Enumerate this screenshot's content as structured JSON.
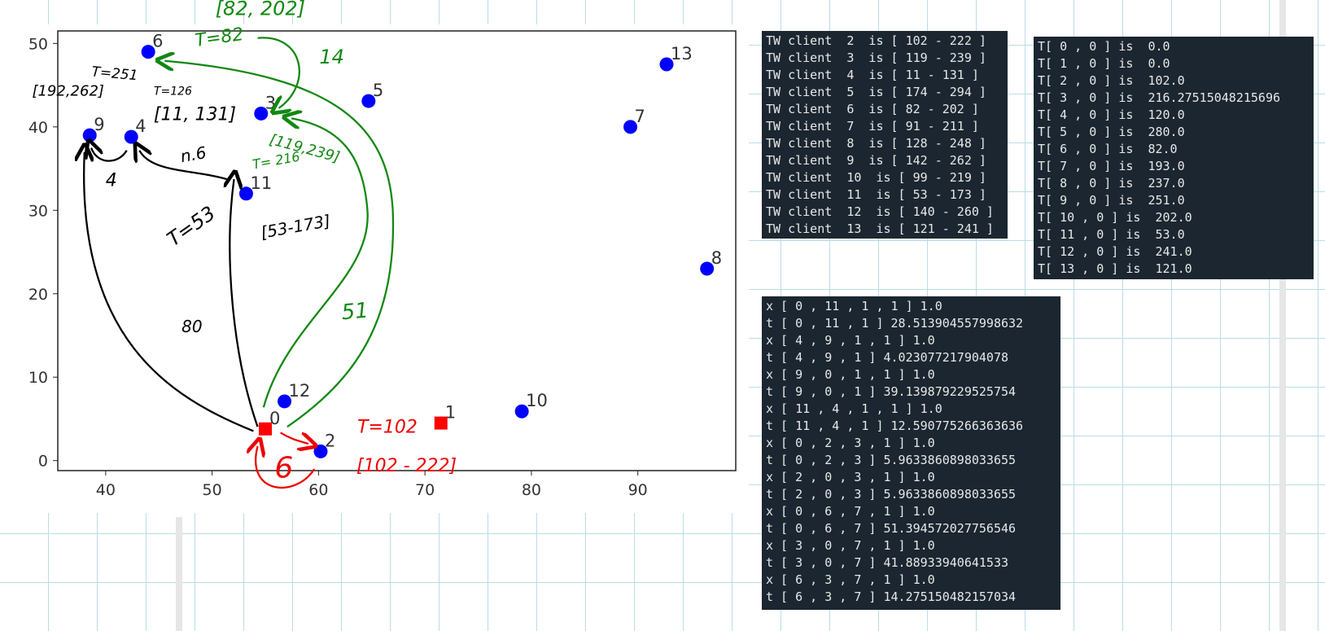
{
  "chart_data": {
    "type": "scatter",
    "xlim": [
      35.5,
      99.2
    ],
    "ylim": [
      -1.2,
      51.5
    ],
    "xticks": [
      40,
      50,
      60,
      70,
      80,
      90
    ],
    "yticks": [
      0,
      10,
      20,
      30,
      40,
      50
    ],
    "series": [
      {
        "color": "#ff0000",
        "marker": "square",
        "labels": [
          "0",
          "1"
        ],
        "x": [
          55,
          71.5
        ],
        "values": [
          3.8,
          4.5
        ]
      },
      {
        "color": "#0000ff",
        "marker": "circle",
        "labels": [
          "2",
          "3",
          "4",
          "5",
          "6",
          "7",
          "8",
          "9",
          "10",
          "11",
          "12",
          "13"
        ],
        "x": [
          60.2,
          54.6,
          42.4,
          64.7,
          44,
          89.3,
          96.5,
          38.5,
          79.1,
          53.2,
          56.8,
          92.7
        ],
        "values": [
          1.1,
          41.6,
          38.8,
          43.1,
          49,
          40,
          23,
          39,
          5.9,
          32,
          7.1,
          47.5
        ]
      }
    ],
    "annotations": [
      {
        "text": "[82, 202]",
        "color": "green"
      },
      {
        "text": "T=82",
        "color": "green"
      },
      {
        "text": "14",
        "color": "green"
      },
      {
        "text": "T=251",
        "color": "black"
      },
      {
        "text": "[192,262]",
        "color": "black"
      },
      {
        "text": "T=126",
        "color": "black"
      },
      {
        "text": "[11, 131]",
        "color": "black"
      },
      {
        "text": "n.6",
        "color": "black"
      },
      {
        "text": "4",
        "color": "black"
      },
      {
        "text": "[119,239]",
        "color": "green"
      },
      {
        "text": "T= 216",
        "color": "green"
      },
      {
        "text": "T=53",
        "color": "black"
      },
      {
        "text": "[53-173]",
        "color": "black"
      },
      {
        "text": "80",
        "color": "black"
      },
      {
        "text": "51",
        "color": "green"
      },
      {
        "text": "T=102",
        "color": "red"
      },
      {
        "text": "[102 - 222]",
        "color": "red"
      },
      {
        "text": "6",
        "color": "red"
      }
    ]
  },
  "consoles": [
    {
      "lines": [
        "TW client  2  is [ 102 - 222 ]",
        "TW client  3  is [ 119 - 239 ]",
        "TW client  4  is [ 11 - 131 ]",
        "TW client  5  is [ 174 - 294 ]",
        "TW client  6  is [ 82 - 202 ]",
        "TW client  7  is [ 91 - 211 ]",
        "TW client  8  is [ 128 - 248 ]",
        "TW client  9  is [ 142 - 262 ]",
        "TW client  10  is [ 99 - 219 ]",
        "TW client  11  is [ 53 - 173 ]",
        "TW client  12  is [ 140 - 260 ]",
        "TW client  13  is [ 121 - 241 ]"
      ]
    },
    {
      "lines": [
        "T[ 0 , 0 ] is  0.0",
        "T[ 1 , 0 ] is  0.0",
        "T[ 2 , 0 ] is  102.0",
        "T[ 3 , 0 ] is  216.2751504821569​6",
        "T[ 4 , 0 ] is  120.0",
        "T[ 5 , 0 ] is  280.0",
        "T[ 6 , 0 ] is  82.0",
        "T[ 7 , 0 ] is  193.0",
        "T[ 8 , 0 ] is  237.0",
        "T[ 9 , 0 ] is  251.0",
        "T[ 10 , 0 ] is  202.0",
        "T[ 11 , 0 ] is  53.0",
        "T[ 12 , 0 ] is  241.0",
        "T[ 13 , 0 ] is  121.0"
      ]
    },
    {
      "lines": [
        "x [ 0 , 11 , 1 , 1 ] 1.0",
        "t [ 0 , 11 , 1 ] 28.513904557998632",
        "x [ 4 , 9 , 1 , 1 ] 1.0",
        "t [ 4 , 9 , 1 ] 4.023077217904078",
        "x [ 9 , 0 , 1 , 1 ] 1.0",
        "t [ 9 , 0 , 1 ] 39.139879229525754",
        "x [ 11 , 4 , 1 , 1 ] 1.0",
        "t [ 11 , 4 , 1 ] 12.590775266363636",
        "x [ 0 , 2 , 3 , 1 ] 1.0",
        "t [ 0 , 2 , 3 ] 5.9633860898033655",
        "x [ 2 , 0 , 3 , 1 ] 1.0",
        "t [ 2 , 0 , 3 ] 5.9633860898033655",
        "x [ 0 , 6 , 7 , 1 ] 1.0",
        "t [ 0 , 6 , 7 ] 51.394572027756546",
        "x [ 3 , 0 , 7 , 1 ] 1.0",
        "t [ 3 , 0 , 7 ] 41.88933940641533",
        "x [ 6 , 3 , 7 , 1 ] 1.0",
        "t [ 6 , 3 , 7 ] 14.275150482157034"
      ]
    }
  ]
}
